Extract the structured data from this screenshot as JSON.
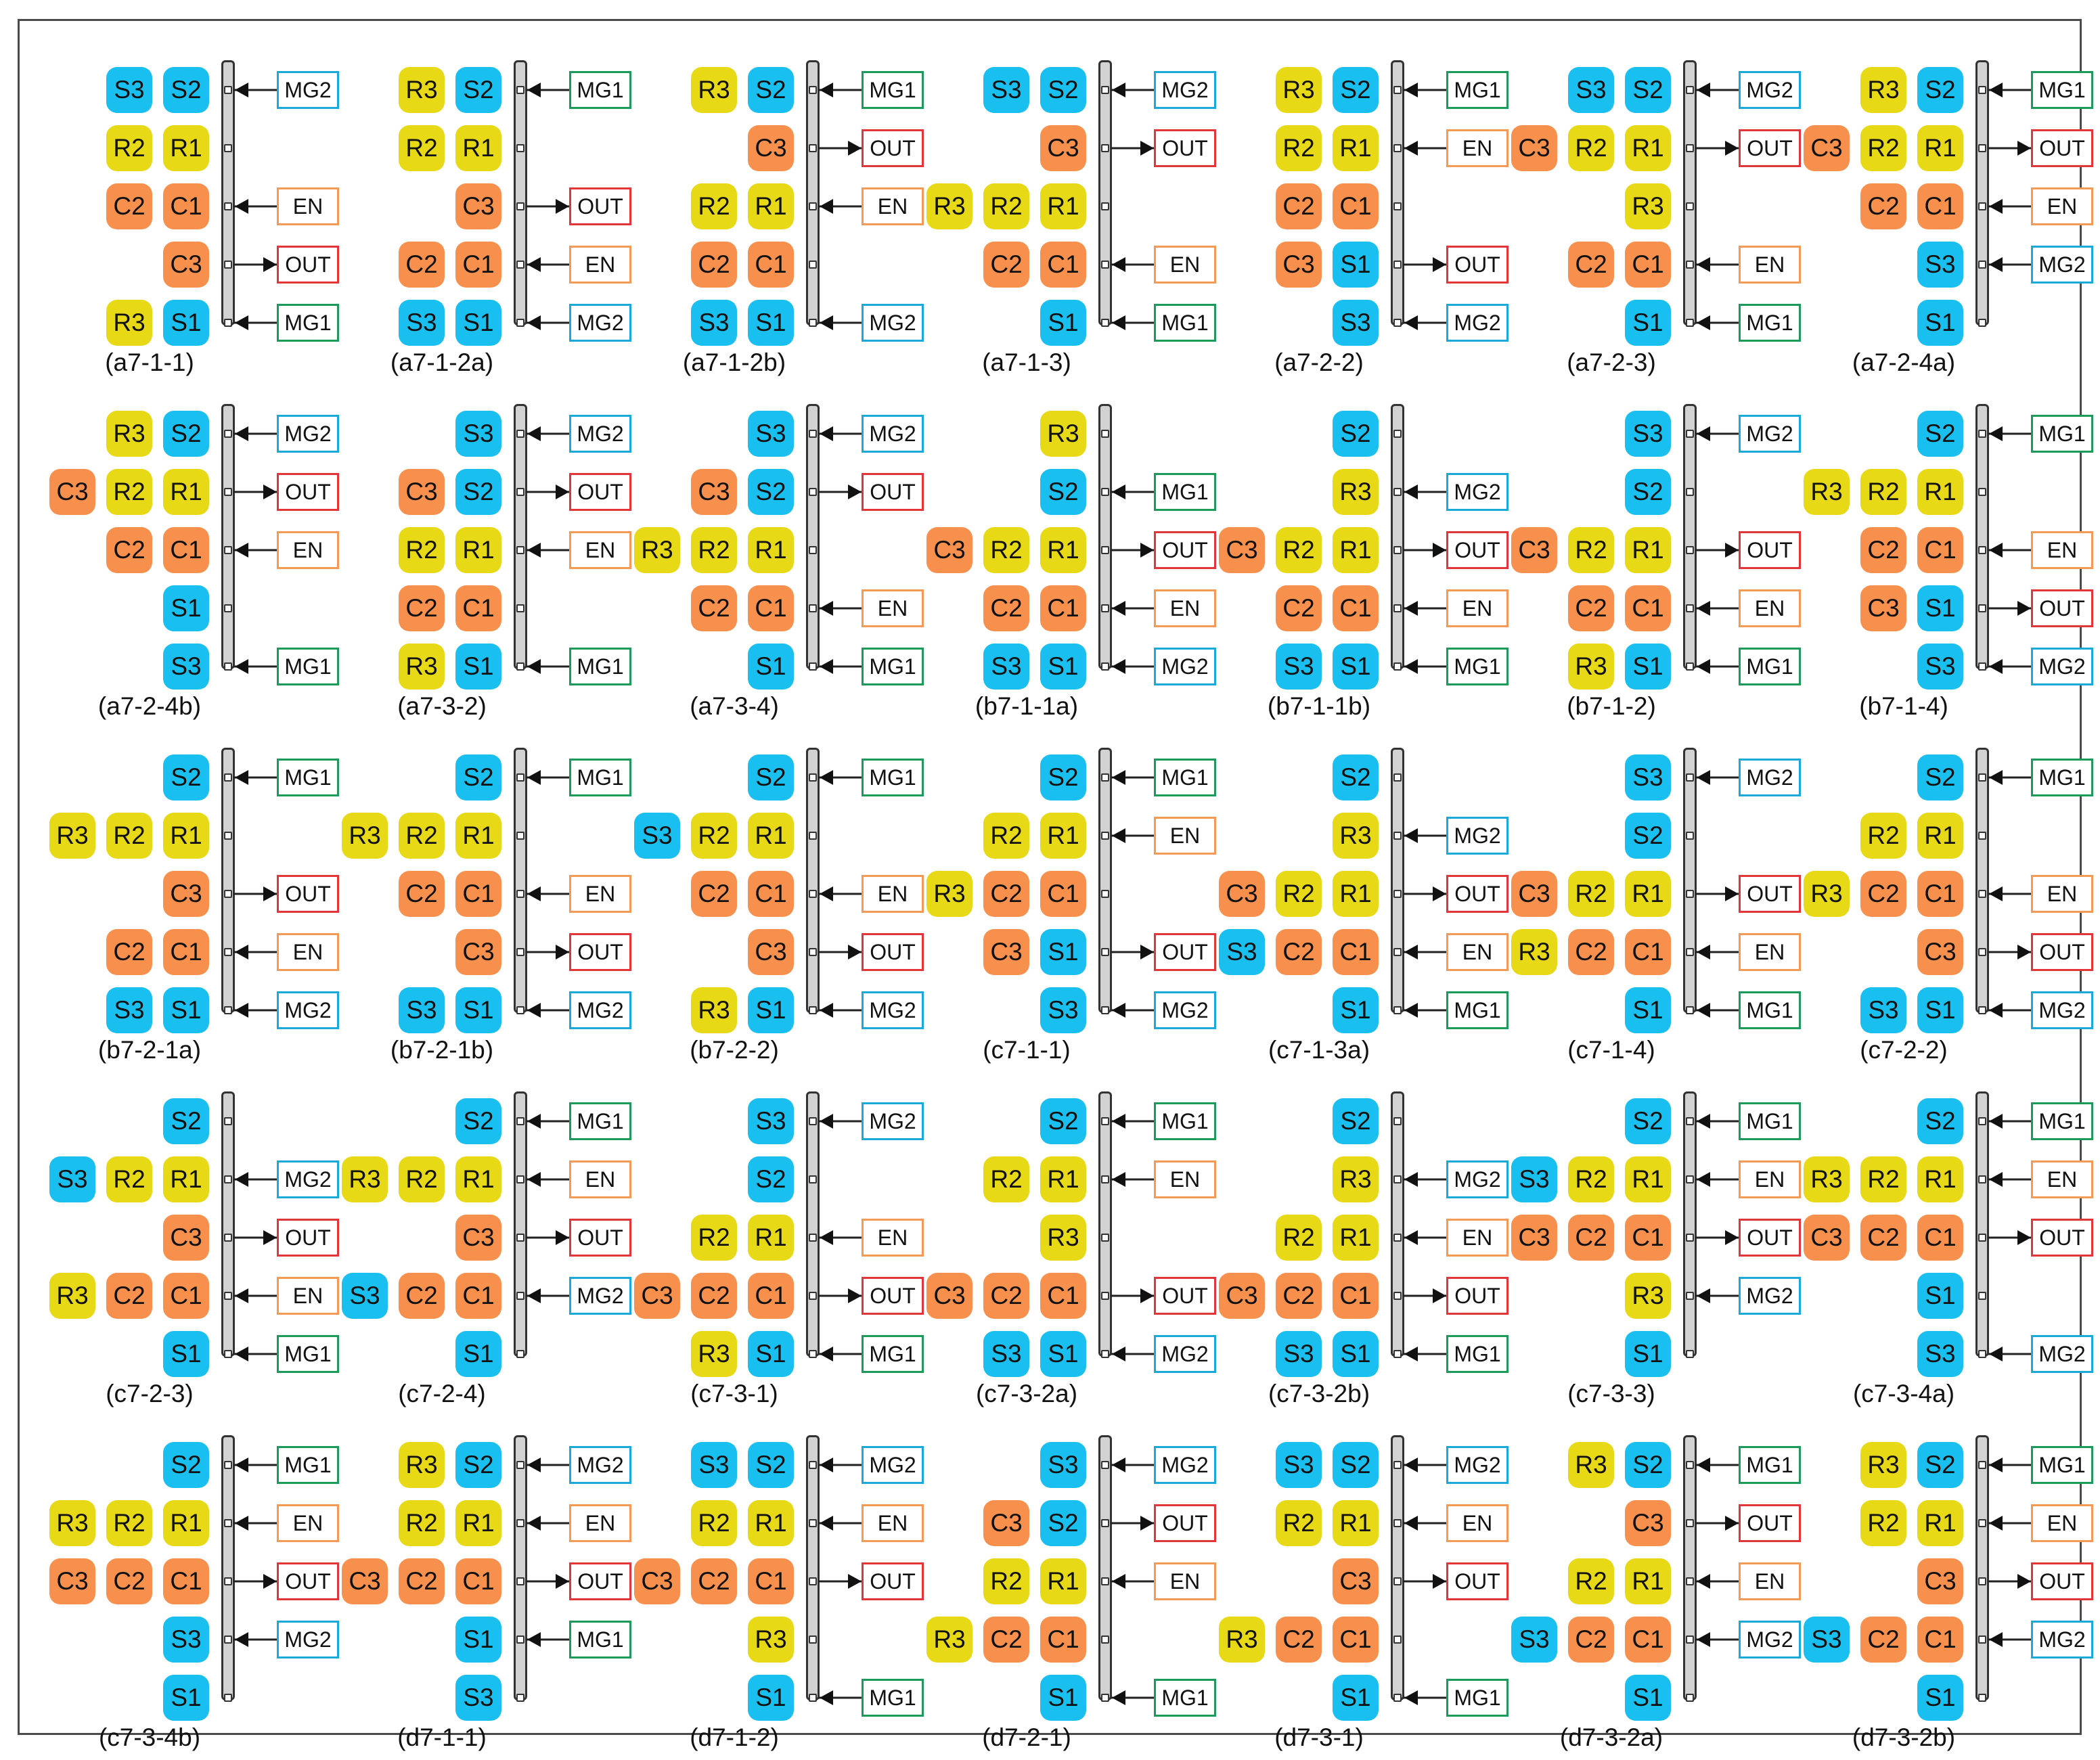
{
  "colors": {
    "R": "#e7d915",
    "S": "#19c0ef",
    "C": "#f7904d",
    "MG1": "#1b9a58",
    "MG2": "#1ba9d8",
    "EN": "#f39a54",
    "OUT": "#e2353a"
  },
  "panels": [
    {
      "label": "(a7-1-1)",
      "rows": [
        [
          "S3",
          "S2",
          "MG2"
        ],
        [
          "R2",
          "R1",
          ""
        ],
        [
          "C2",
          "C1",
          "EN"
        ],
        [
          "",
          "C3",
          "OUT"
        ],
        [
          "R3",
          "S1",
          "MG1"
        ]
      ]
    },
    {
      "label": "(a7-1-2a)",
      "rows": [
        [
          "R3",
          "S2",
          "MG1"
        ],
        [
          "R2",
          "R1",
          ""
        ],
        [
          "",
          "C3",
          "OUT"
        ],
        [
          "C2",
          "C1",
          "EN"
        ],
        [
          "S3",
          "S1",
          "MG2"
        ]
      ]
    },
    {
      "label": "(a7-1-2b)",
      "rows": [
        [
          "R3",
          "S2",
          "MG1"
        ],
        [
          "",
          "C3",
          "OUT"
        ],
        [
          "R2",
          "R1",
          "EN"
        ],
        [
          "C2",
          "C1",
          ""
        ],
        [
          "S3",
          "S1",
          "MG2"
        ]
      ]
    },
    {
      "label": "(a7-1-3)",
      "rows": [
        [
          "S3",
          "S2",
          "MG2"
        ],
        [
          "",
          "C3",
          "OUT"
        ],
        [
          "R3",
          "R2",
          "R1",
          ""
        ],
        [
          "C2",
          "C1",
          "EN"
        ],
        [
          "",
          "S1",
          "MG1"
        ]
      ]
    },
    {
      "label": "(a7-2-2)",
      "rows": [
        [
          "R3",
          "S2",
          "MG1"
        ],
        [
          "R2",
          "R1",
          "EN"
        ],
        [
          "C2",
          "C1",
          ""
        ],
        [
          "C3",
          "S1",
          "OUT"
        ],
        [
          "S3",
          "MG2"
        ]
      ]
    },
    {
      "label": "(a7-2-3)",
      "rows": [
        [
          "S3",
          "S2",
          "MG2"
        ],
        [
          "C3",
          "R2",
          "R1",
          "OUT"
        ],
        [
          "",
          "R3",
          ""
        ],
        [
          "C2",
          "C1",
          "EN"
        ],
        [
          "",
          "S1",
          "MG1"
        ]
      ]
    },
    {
      "label": "(a7-2-4a)",
      "rows": [
        [
          "R3",
          "S2",
          "MG1"
        ],
        [
          "C3",
          "R2",
          "R1",
          "OUT"
        ],
        [
          "C2",
          "C1",
          "EN"
        ],
        [
          "",
          "S3",
          "MG2"
        ],
        [
          "",
          "S1",
          ""
        ]
      ]
    },
    {
      "label": "(a7-2-4b)",
      "rows": [
        [
          "R3",
          "S2",
          "MG2"
        ],
        [
          "C3",
          "R2",
          "R1",
          "OUT"
        ],
        [
          "C2",
          "C1",
          "EN"
        ],
        [
          "",
          "S1",
          ""
        ],
        [
          "",
          "S3",
          "MG1"
        ]
      ]
    },
    {
      "label": "(a7-3-2)",
      "rows": [
        [
          "",
          "S3",
          "MG2"
        ],
        [
          "C3",
          "S2",
          "OUT"
        ],
        [
          "R2",
          "R1",
          "EN"
        ],
        [
          "C2",
          "C1",
          ""
        ],
        [
          "R3",
          "S1",
          "MG1"
        ]
      ]
    },
    {
      "label": "(a7-3-4)",
      "rows": [
        [
          "",
          "S3",
          "MG2"
        ],
        [
          "C3",
          "S2",
          "OUT"
        ],
        [
          "R3",
          "R2",
          "R1",
          ""
        ],
        [
          "C2",
          "C1",
          "EN"
        ],
        [
          "",
          "S1",
          "MG1"
        ]
      ]
    },
    {
      "label": "(b7-1-1a)",
      "rows": [
        [
          "",
          "R3",
          ""
        ],
        [
          "",
          "S2",
          "MG1"
        ],
        [
          "C3",
          "R2",
          "R1",
          "OUT"
        ],
        [
          "C2",
          "C1",
          "EN"
        ],
        [
          "S3",
          "S1",
          "MG2"
        ]
      ]
    },
    {
      "label": "(b7-1-1b)",
      "rows": [
        [
          "",
          "S2",
          ""
        ],
        [
          "",
          "R3",
          "MG2"
        ],
        [
          "C3",
          "R2",
          "R1",
          "OUT"
        ],
        [
          "C2",
          "C1",
          "EN"
        ],
        [
          "S3",
          "S1",
          "MG1"
        ]
      ]
    },
    {
      "label": "(b7-1-2)",
      "rows": [
        [
          "",
          "S3",
          "MG2"
        ],
        [
          "",
          "S2",
          ""
        ],
        [
          "C3",
          "R2",
          "R1",
          "OUT"
        ],
        [
          "C2",
          "C1",
          "EN"
        ],
        [
          "R3",
          "S1",
          "MG1"
        ]
      ]
    },
    {
      "label": "(b7-1-4)",
      "rows": [
        [
          "",
          "S2",
          "MG1"
        ],
        [
          "R3",
          "R2",
          "R1",
          ""
        ],
        [
          "C2",
          "C1",
          "EN"
        ],
        [
          "C3",
          "S1",
          "OUT"
        ],
        [
          "",
          "S3",
          "MG2"
        ]
      ]
    },
    {
      "label": "(b7-2-1a)",
      "rows": [
        [
          "",
          "S2",
          "MG1"
        ],
        [
          "R3",
          "R2",
          "R1",
          ""
        ],
        [
          "",
          "C3",
          "OUT"
        ],
        [
          "C2",
          "C1",
          "EN"
        ],
        [
          "S3",
          "S1",
          "MG2"
        ]
      ]
    },
    {
      "label": "(b7-2-1b)",
      "rows": [
        [
          "",
          "S2",
          "MG1"
        ],
        [
          "R3",
          "R2",
          "R1",
          ""
        ],
        [
          "C2",
          "C1",
          "EN"
        ],
        [
          "",
          "C3",
          "OUT"
        ],
        [
          "S3",
          "S1",
          "MG2"
        ]
      ]
    },
    {
      "label": "(b7-2-2)",
      "rows": [
        [
          "",
          "S2",
          "MG1"
        ],
        [
          "S3",
          "R2",
          "R1",
          ""
        ],
        [
          "C2",
          "C1",
          "EN"
        ],
        [
          "",
          "C3",
          "OUT"
        ],
        [
          "R3",
          "S1",
          "MG2"
        ]
      ]
    },
    {
      "label": "(c7-1-1)",
      "rows": [
        [
          "",
          "S2",
          "MG1"
        ],
        [
          "R2",
          "R1",
          "EN"
        ],
        [
          "R3",
          "C2",
          "C1",
          ""
        ],
        [
          "C3",
          "S1",
          "OUT"
        ],
        [
          "",
          "S3",
          "MG2"
        ]
      ]
    },
    {
      "label": "(c7-1-3a)",
      "rows": [
        [
          "",
          "S2",
          ""
        ],
        [
          "",
          "R3",
          "MG2"
        ],
        [
          "C3",
          "R2",
          "R1",
          "OUT"
        ],
        [
          "S3",
          "C2",
          "C1",
          "EN"
        ],
        [
          "",
          "S1",
          "MG1"
        ]
      ]
    },
    {
      "label": "(c7-1-4)",
      "rows": [
        [
          "",
          "S3",
          "MG2"
        ],
        [
          "",
          "S2",
          ""
        ],
        [
          "C3",
          "R2",
          "R1",
          "OUT"
        ],
        [
          "R3",
          "C2",
          "C1",
          "EN"
        ],
        [
          "",
          "S1",
          "MG1"
        ]
      ]
    },
    {
      "label": "(c7-2-2)",
      "rows": [
        [
          "",
          "S2",
          "MG1"
        ],
        [
          "R2",
          "R1",
          ""
        ],
        [
          "R3",
          "C2",
          "C1",
          "EN"
        ],
        [
          "",
          "C3",
          "OUT"
        ],
        [
          "S3",
          "S1",
          "MG2"
        ]
      ]
    },
    {
      "label": "(c7-2-3)",
      "rows": [
        [
          "",
          "S2",
          ""
        ],
        [
          "S3",
          "R2",
          "R1",
          "MG2"
        ],
        [
          "",
          "C3",
          "OUT"
        ],
        [
          "R3",
          "C2",
          "C1",
          "EN"
        ],
        [
          "",
          "S1",
          "MG1"
        ]
      ]
    },
    {
      "label": "(c7-2-4)",
      "rows": [
        [
          "",
          "S2",
          "MG1"
        ],
        [
          "R3",
          "R2",
          "R1",
          "EN"
        ],
        [
          "",
          "C3",
          "OUT"
        ],
        [
          "S3",
          "C2",
          "C1",
          "MG2"
        ],
        [
          "",
          "S1",
          ""
        ]
      ]
    },
    {
      "label": "(c7-3-1)",
      "rows": [
        [
          "",
          "S3",
          "MG2"
        ],
        [
          "",
          "S2",
          ""
        ],
        [
          "R2",
          "R1",
          "EN"
        ],
        [
          "C3",
          "C2",
          "C1",
          "OUT"
        ],
        [
          "R3",
          "S1",
          "MG1"
        ]
      ]
    },
    {
      "label": "(c7-3-2a)",
      "rows": [
        [
          "",
          "S2",
          "MG1"
        ],
        [
          "R2",
          "R1",
          "EN"
        ],
        [
          "",
          "R3",
          ""
        ],
        [
          "C3",
          "C2",
          "C1",
          "OUT"
        ],
        [
          "S3",
          "S1",
          "MG2"
        ]
      ]
    },
    {
      "label": "(c7-3-2b)",
      "rows": [
        [
          "",
          "S2",
          ""
        ],
        [
          "",
          "R3",
          "MG2"
        ],
        [
          "R2",
          "R1",
          "EN"
        ],
        [
          "C3",
          "C2",
          "C1",
          "OUT"
        ],
        [
          "S3",
          "S1",
          "MG1"
        ]
      ]
    },
    {
      "label": "(c7-3-3)",
      "rows": [
        [
          "",
          "S2",
          "MG1"
        ],
        [
          "S3",
          "R2",
          "R1",
          "EN"
        ],
        [
          "C3",
          "C2",
          "C1",
          "OUT"
        ],
        [
          "",
          "R3",
          "MG2"
        ],
        [
          "",
          "S1",
          ""
        ]
      ]
    },
    {
      "label": "(c7-3-4a)",
      "rows": [
        [
          "",
          "S2",
          "MG1"
        ],
        [
          "R3",
          "R2",
          "R1",
          "EN"
        ],
        [
          "C3",
          "C2",
          "C1",
          "OUT"
        ],
        [
          "",
          "S1",
          ""
        ],
        [
          "",
          "S3",
          "MG2"
        ]
      ]
    },
    {
      "label": "(c7-3-4b)",
      "rows": [
        [
          "",
          "S2",
          "MG1"
        ],
        [
          "R3",
          "R2",
          "R1",
          "EN"
        ],
        [
          "C3",
          "C2",
          "C1",
          "OUT"
        ],
        [
          "",
          "S3",
          "MG2"
        ],
        [
          "",
          "S1",
          ""
        ]
      ]
    },
    {
      "label": "(d7-1-1)",
      "rows": [
        [
          "R3",
          "S2",
          "MG2"
        ],
        [
          "R2",
          "R1",
          "EN"
        ],
        [
          "C3",
          "C2",
          "C1",
          "OUT"
        ],
        [
          "",
          "S1",
          "MG1"
        ],
        [
          "",
          "S3",
          ""
        ]
      ]
    },
    {
      "label": "(d7-1-2)",
      "rows": [
        [
          "S3",
          "S2",
          "MG2"
        ],
        [
          "R2",
          "R1",
          "EN"
        ],
        [
          "C3",
          "C2",
          "C1",
          "OUT"
        ],
        [
          "",
          "R3",
          ""
        ],
        [
          "",
          "S1",
          "MG1"
        ]
      ]
    },
    {
      "label": "(d7-2-1)",
      "rows": [
        [
          "",
          "S3",
          "MG2"
        ],
        [
          "C3",
          "S2",
          "OUT"
        ],
        [
          "R2",
          "R1",
          "EN"
        ],
        [
          "R3",
          "C2",
          "C1",
          ""
        ],
        [
          "",
          "S1",
          "MG1"
        ]
      ]
    },
    {
      "label": "(d7-3-1)",
      "rows": [
        [
          "S3",
          "S2",
          "MG2"
        ],
        [
          "R2",
          "R1",
          "EN"
        ],
        [
          "",
          "C3",
          "OUT"
        ],
        [
          "R3",
          "C2",
          "C1",
          ""
        ],
        [
          "",
          "S1",
          "MG1"
        ]
      ]
    },
    {
      "label": "(d7-3-2a)",
      "rows": [
        [
          "R3",
          "S2",
          "MG1"
        ],
        [
          "",
          "C3",
          "OUT"
        ],
        [
          "R2",
          "R1",
          "EN"
        ],
        [
          "S3",
          "C2",
          "C1",
          "MG2"
        ],
        [
          "",
          "S1",
          ""
        ]
      ]
    },
    {
      "label": "(d7-3-2b)",
      "rows": [
        [
          "R3",
          "S2",
          "MG1"
        ],
        [
          "R2",
          "R1",
          "EN"
        ],
        [
          "",
          "C3",
          "OUT"
        ],
        [
          "S3",
          "C2",
          "C1",
          "MG2"
        ],
        [
          "",
          "S1",
          ""
        ]
      ]
    }
  ]
}
